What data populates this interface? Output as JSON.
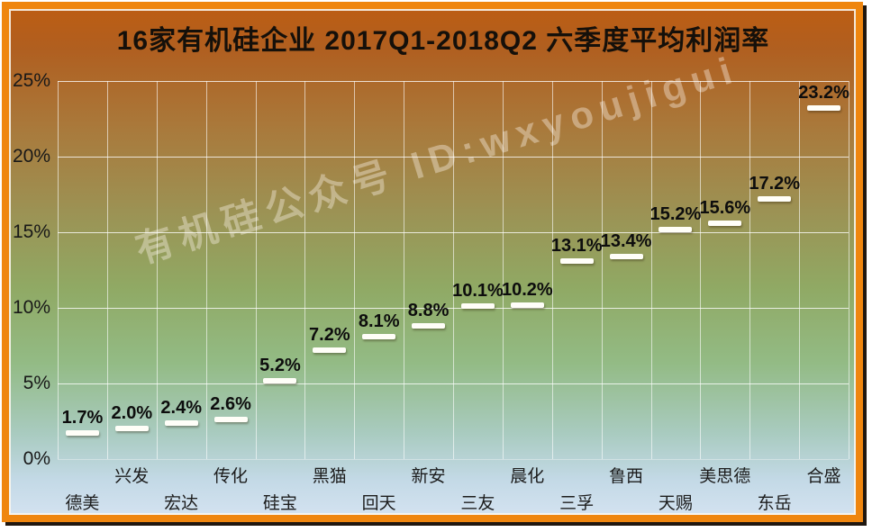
{
  "title": "16家有机硅企业 2017Q1-2018Q2  六季度平均利润率",
  "watermark": "有机硅公众号 ID:wxyoujigui",
  "colors": {
    "frame": "#ef860f",
    "frame_shadow": "#1f1710",
    "gridline": "rgba(255,255,255,0.7)",
    "marker": "#fffef8",
    "title_text": "#15100a",
    "axis_text": "#181818",
    "gradient_top": "#bc5d13",
    "gradient_middle": "#90a964",
    "gradient_bottom": "#d3e2f0"
  },
  "chart_data": {
    "type": "scatter",
    "marker_style": "white-dash",
    "title": "16家有机硅企业 2017Q1-2018Q2  六季度平均利润率",
    "categories": [
      "德美",
      "兴发",
      "宏达",
      "传化",
      "硅宝",
      "黑猫",
      "回天",
      "新安",
      "三友",
      "晨化",
      "三孚",
      "鲁西",
      "天赐",
      "美思德",
      "东岳",
      "合盛"
    ],
    "values": [
      1.7,
      2.0,
      2.4,
      2.6,
      5.2,
      7.2,
      8.1,
      8.8,
      10.1,
      10.2,
      13.1,
      13.4,
      15.2,
      15.6,
      17.2,
      23.2
    ],
    "value_labels": [
      "1.7%",
      "2.0%",
      "2.4%",
      "2.6%",
      "5.2%",
      "7.2%",
      "8.1%",
      "8.8%",
      "10.1%",
      "10.2%",
      "13.1%",
      "13.4%",
      "15.2%",
      "15.6%",
      "17.2%",
      "23.2%"
    ],
    "xlabel": "",
    "ylabel": "",
    "ylim": [
      0,
      25
    ],
    "ytick_values": [
      0,
      5,
      10,
      15,
      20,
      25
    ],
    "ytick_labels": [
      "0%",
      "5%",
      "10%",
      "15%",
      "20%",
      "25%"
    ],
    "grid": true,
    "legend_position": "none",
    "x_label_layout": "staggered-two-rows"
  }
}
